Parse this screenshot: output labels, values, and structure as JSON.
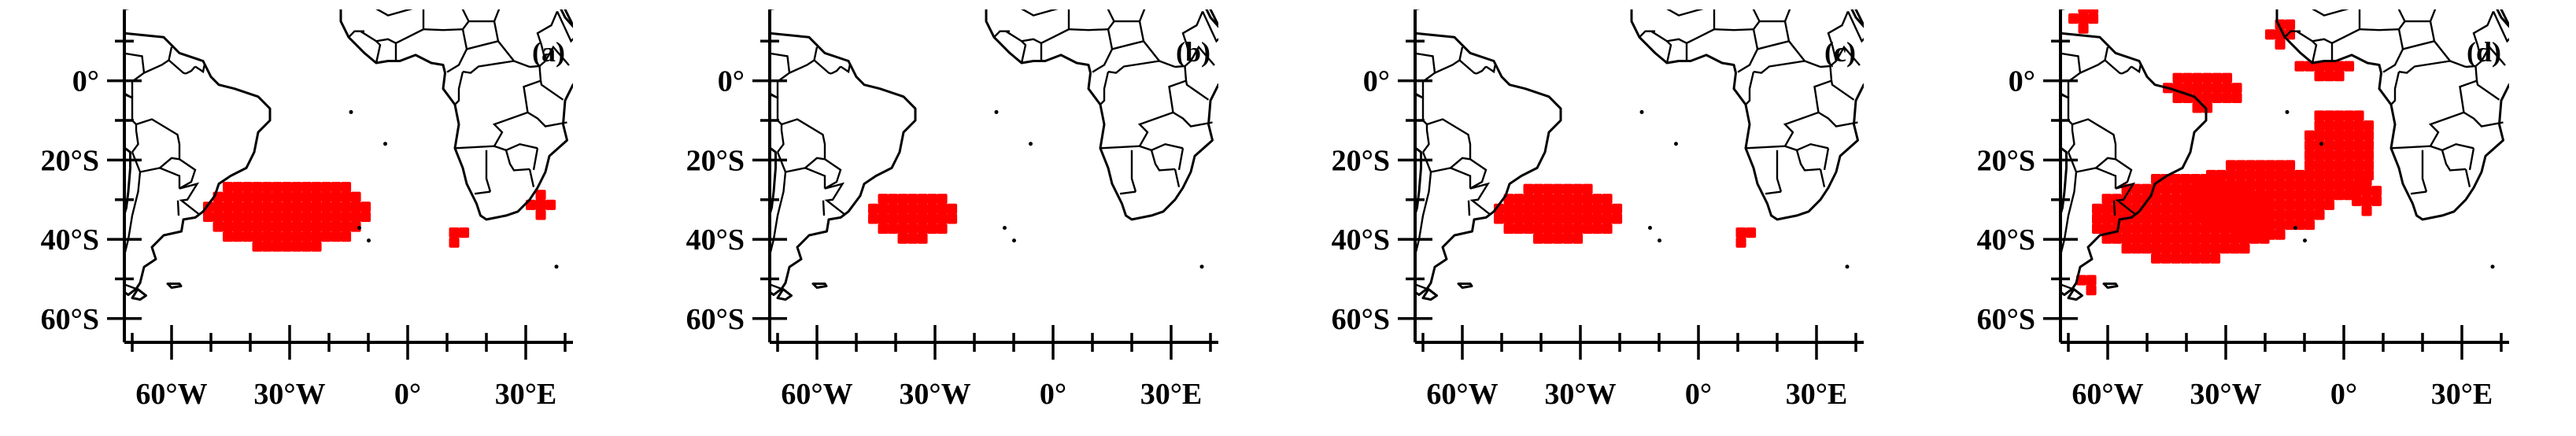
{
  "figure": {
    "panels": [
      {
        "label": "(a)",
        "regions": [
          {
            "lon": [
              -52,
              -12
            ],
            "lat": [
              -43,
              -26
            ],
            "shape": "blob"
          },
          {
            "lon": [
              8,
              14
            ],
            "lat": [
              -42,
              -39
            ],
            "shape": "blob"
          },
          {
            "lon": [
              30,
              36
            ],
            "lat": [
              -35,
              -30
            ],
            "shape": "blob"
          }
        ]
      },
      {
        "label": "(b)",
        "regions": [
          {
            "lon": [
              -47,
              -27
            ],
            "lat": [
              -41,
              -29
            ],
            "shape": "blob"
          }
        ]
      },
      {
        "label": "(c)",
        "regions": [
          {
            "lon": [
              -52,
              -22
            ],
            "lat": [
              -41,
              -28
            ],
            "shape": "blob"
          },
          {
            "lon": [
              7,
              13
            ],
            "lat": [
              -42,
              -39
            ],
            "shape": "blob"
          }
        ]
      },
      {
        "label": "(d)",
        "regions": [
          {
            "lon": [
              -64,
              -20
            ],
            "lat": [
              -46,
              -26
            ],
            "shape": "blob"
          },
          {
            "lon": [
              -40,
              -5
            ],
            "lat": [
              -40,
              -22
            ],
            "shape": "blob"
          },
          {
            "lon": [
              -46,
              -28
            ],
            "lat": [
              -8,
              1
            ],
            "shape": "blob"
          },
          {
            "lon": [
              -20,
              -14
            ],
            "lat": [
              8,
              15
            ],
            "shape": "blob"
          },
          {
            "lon": [
              -15,
              4
            ],
            "lat": [
              0,
              3
            ],
            "shape": "blob"
          },
          {
            "lon": [
              -10,
              6
            ],
            "lat": [
              -30,
              -8
            ],
            "shape": "blob"
          },
          {
            "lon": [
              2,
              8
            ],
            "lat": [
              -34,
              -26
            ],
            "shape": "blob"
          },
          {
            "lon": [
              -70,
              -63
            ],
            "lat": [
              12,
              18
            ],
            "shape": "blob"
          },
          {
            "lon": [
              -68,
              -64
            ],
            "lat": [
              -54,
              -50
            ],
            "shape": "blob"
          }
        ]
      }
    ],
    "axes": {
      "lon_range": [
        -72,
        42
      ],
      "lat_range": [
        -66,
        18
      ],
      "x_ticks": [
        {
          "value": -60,
          "label": "60°W"
        },
        {
          "value": -30,
          "label": "30°W"
        },
        {
          "value": 0,
          "label": "0°"
        },
        {
          "value": 30,
          "label": "30°E"
        }
      ],
      "y_ticks": [
        {
          "value": 0,
          "label": "0°"
        },
        {
          "value": -20,
          "label": "20°S"
        },
        {
          "value": -40,
          "label": "40°S"
        },
        {
          "value": -60,
          "label": "60°S"
        }
      ]
    },
    "colors": {
      "highlight": "#ff0000",
      "land_outline": "#000000"
    }
  }
}
